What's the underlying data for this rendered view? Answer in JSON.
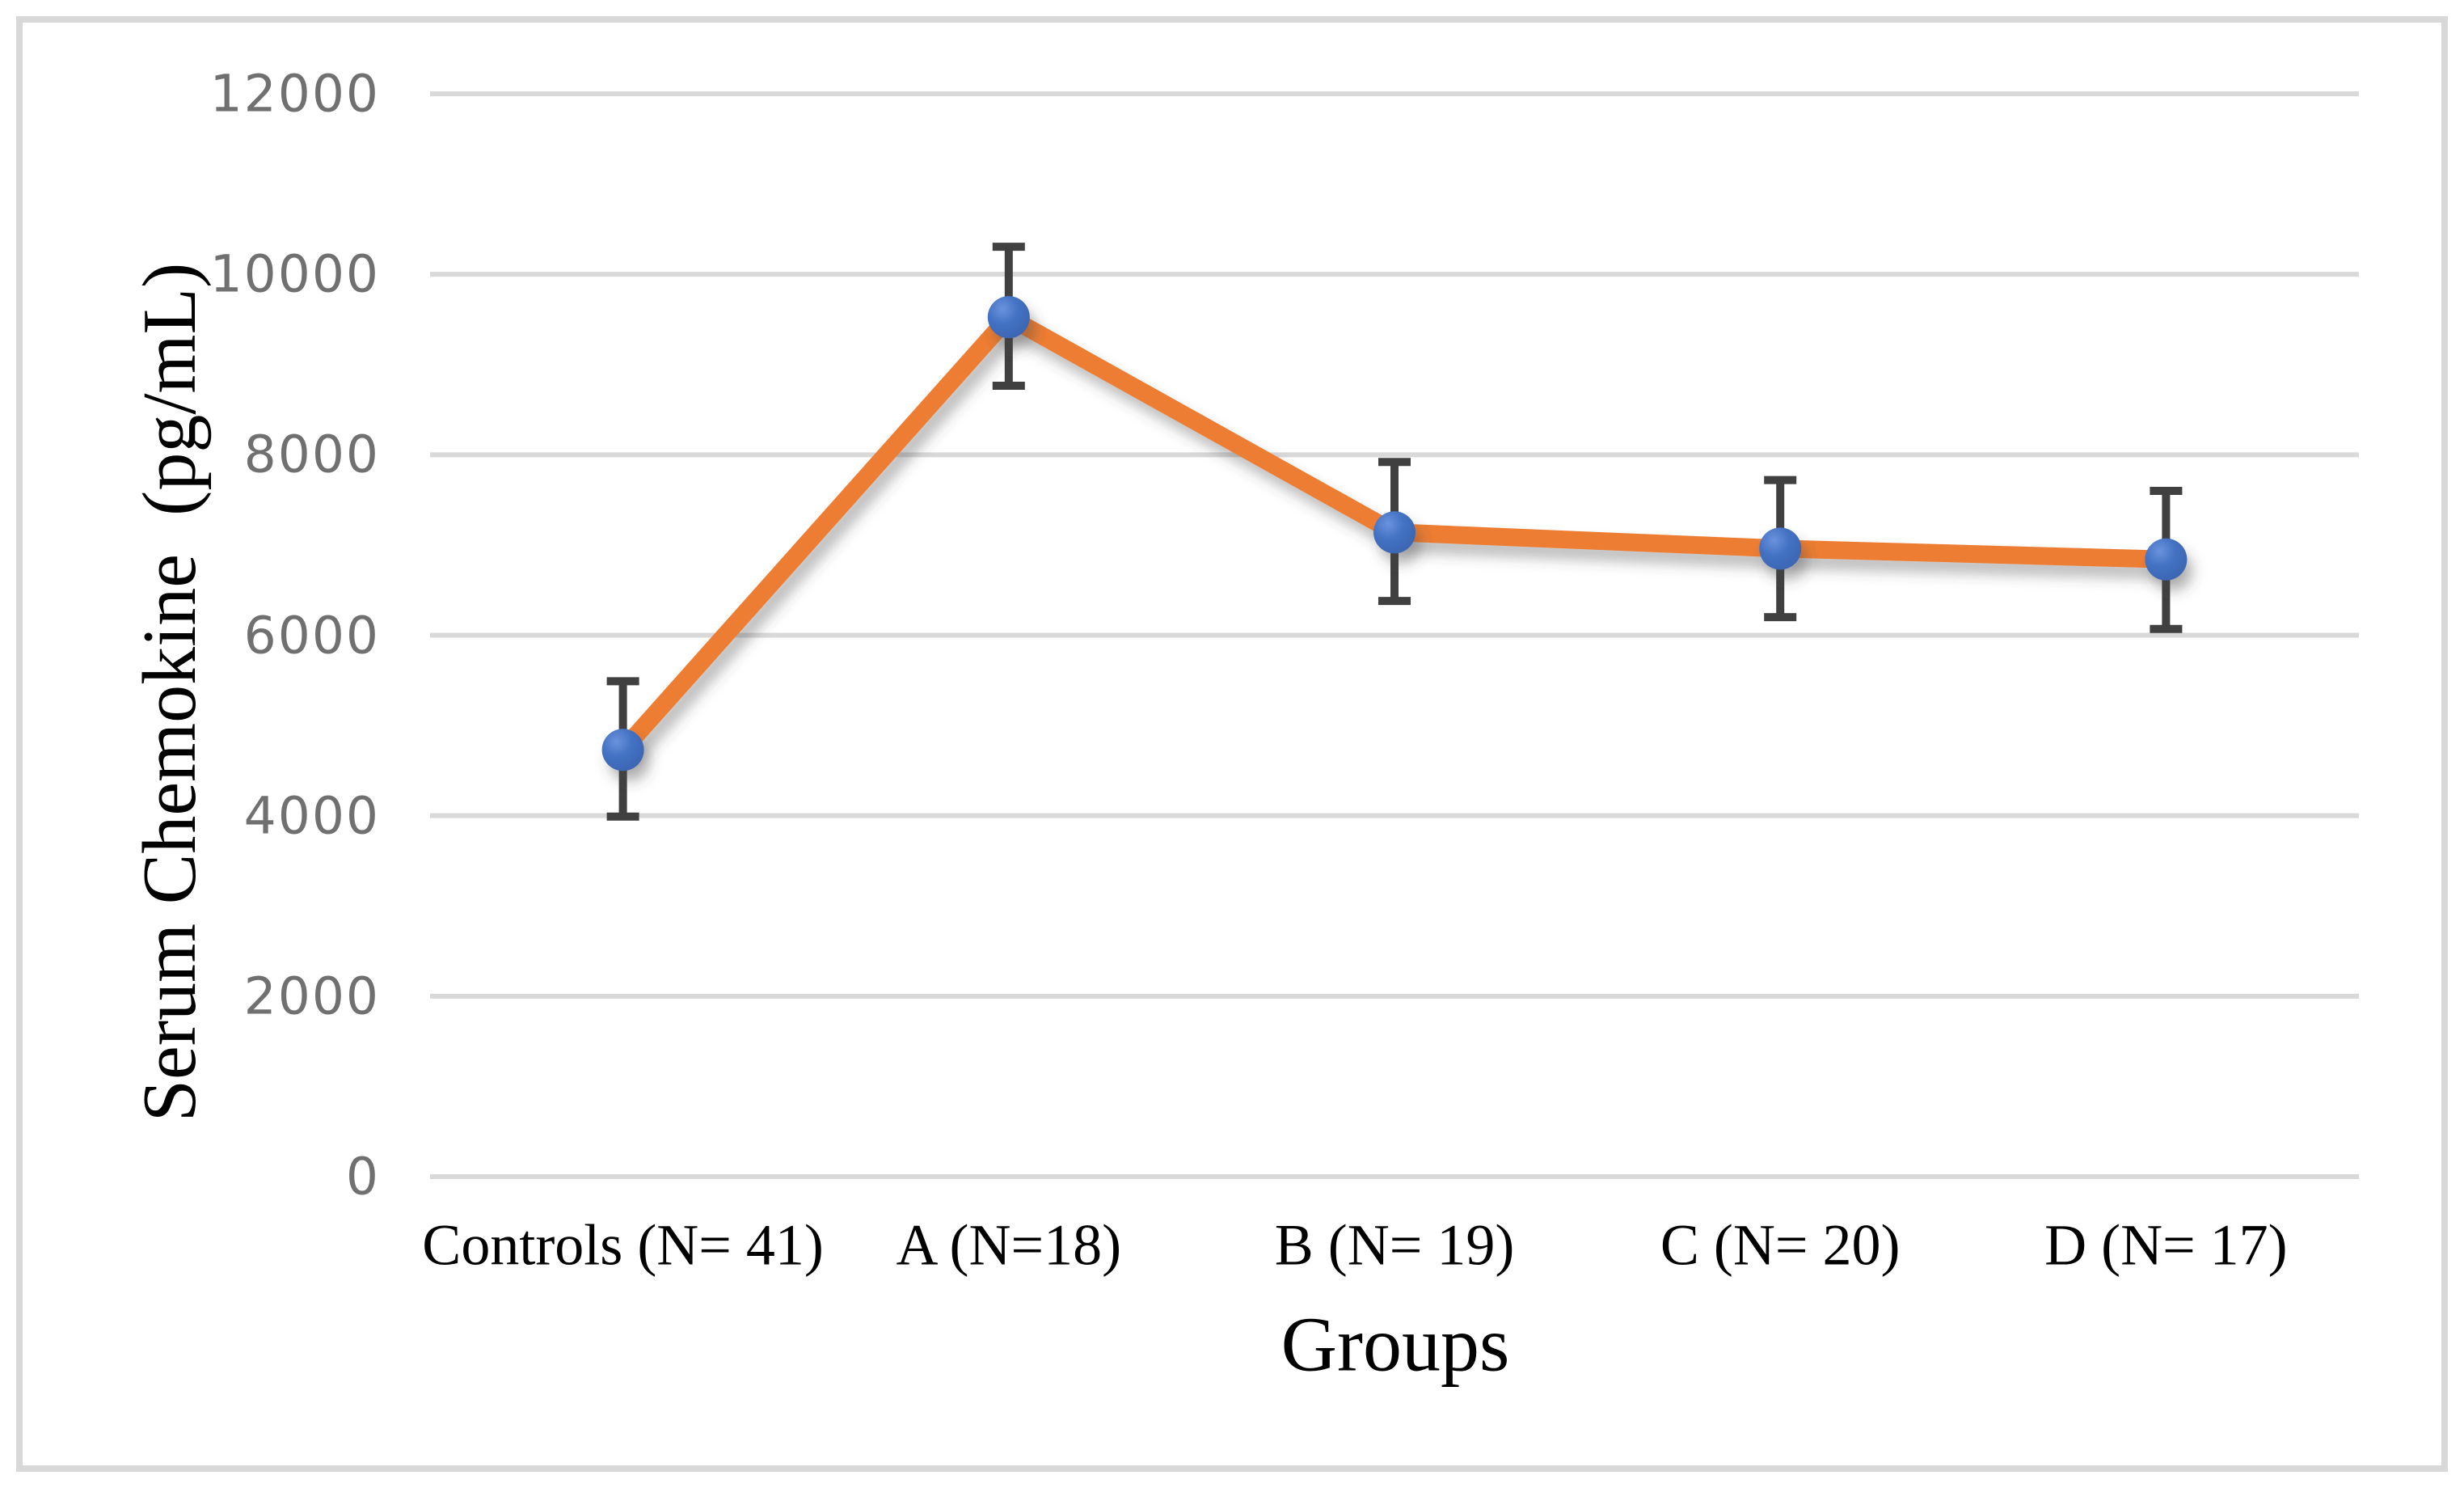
{
  "figure": {
    "background": "#FFFFFF",
    "border_color": "#D8D8D8"
  },
  "chart_data": {
    "type": "line",
    "title": "",
    "xlabel": "Groups",
    "ylabel": "Serum Chemokine  (pg/mL)",
    "categories": [
      "Controls (N= 41)",
      "A (N=18)",
      "B (N= 19)",
      "C (N= 20)",
      "D (N= 17)"
    ],
    "series": [
      {
        "name": "Serum Chemokine (pg/mL)",
        "values": [
          4730,
          9525,
          7140,
          6960,
          6840
        ],
        "error_low": [
          3990,
          8765,
          6380,
          6200,
          6070
        ],
        "error_high": [
          5490,
          10305,
          7920,
          7720,
          7600
        ]
      }
    ],
    "ylim": [
      0,
      12000
    ],
    "yticks": [
      12000,
      10000,
      8000,
      6000,
      4000,
      2000,
      0
    ],
    "grid": "horizontal",
    "legend": "none",
    "marker": "circle",
    "colors": {
      "line": "#ED7D31",
      "marker_fill": "#4472C4",
      "marker_highlight": "#6A93DC",
      "marker_dark": "#3A63AF",
      "error_bar": "#404040",
      "gridline": "#D9D9D9",
      "tick_label": "#707070",
      "axis_label": "#000000",
      "shadow": "#404040"
    }
  }
}
